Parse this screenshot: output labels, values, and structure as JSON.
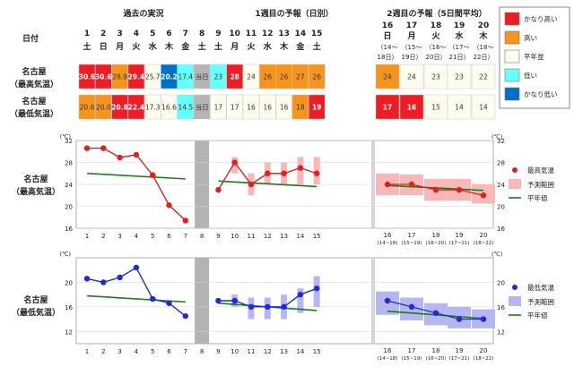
{
  "header": {
    "past_title": "過去の実況",
    "week1_title": "1週目の予報（日別）",
    "week2_title": "2週目の予報（5日間平均）",
    "date_label": "日付",
    "today_label": "当日"
  },
  "row_labels": {
    "max": [
      "名古屋",
      "（最高気温）"
    ],
    "min": [
      "名古屋",
      "（最低気温）"
    ]
  },
  "days": [
    {
      "d": "1",
      "w": "土"
    },
    {
      "d": "2",
      "w": "日"
    },
    {
      "d": "3",
      "w": "月"
    },
    {
      "d": "4",
      "w": "火"
    },
    {
      "d": "5",
      "w": "水"
    },
    {
      "d": "6",
      "w": "木"
    },
    {
      "d": "7",
      "w": "金"
    },
    {
      "d": "8",
      "w": "土"
    },
    {
      "d": "9",
      "w": "土"
    },
    {
      "d": "10",
      "w": "月"
    },
    {
      "d": "11",
      "w": "火"
    },
    {
      "d": "12",
      "w": "水"
    },
    {
      "d": "13",
      "w": "木"
    },
    {
      "d": "14",
      "w": "金"
    },
    {
      "d": "15",
      "w": "土"
    }
  ],
  "week2_days": [
    {
      "d": "16",
      "w": "日",
      "range1": "（14～",
      "range2": "18日）"
    },
    {
      "d": "17",
      "w": "月",
      "range1": "（15～",
      "range2": "19日）"
    },
    {
      "d": "18",
      "w": "火",
      "range1": "（16～",
      "range2": "20日）"
    },
    {
      "d": "19",
      "w": "水",
      "range1": "（17～",
      "range2": "21日）"
    },
    {
      "d": "20",
      "w": "木",
      "range1": "（18～",
      "range2": "22日）"
    }
  ],
  "table_max": [
    "30.6",
    "30.6",
    "28.9",
    "29.4",
    "25.7",
    "20.2",
    "17.4",
    "当日",
    "23",
    "28",
    "24",
    "26",
    "26",
    "27",
    "26"
  ],
  "table_max_levels": [
    "vhigh",
    "vhigh",
    "high",
    "vhigh",
    "normal",
    "vlow",
    "low",
    "today",
    "low",
    "vhigh",
    "normal",
    "high",
    "high",
    "high",
    "high"
  ],
  "table_min": [
    "20.6",
    "20.0",
    "20.8",
    "22.4",
    "17.3",
    "16.6",
    "14.5",
    "当日",
    "17",
    "17",
    "16",
    "16",
    "16",
    "18",
    "19"
  ],
  "table_min_levels": [
    "high",
    "high",
    "vhigh",
    "vhigh",
    "normal",
    "normal",
    "low",
    "today",
    "normal",
    "normal",
    "normal",
    "normal",
    "normal",
    "high",
    "vhigh"
  ],
  "week2_max": [
    "24",
    "24",
    "23",
    "23",
    "22"
  ],
  "week2_max_levels": [
    "high",
    "normal",
    "normal",
    "normal",
    "normal"
  ],
  "week2_min": [
    "17",
    "16",
    "15",
    "14",
    "14"
  ],
  "week2_min_levels": [
    "vhigh",
    "vhigh",
    "normal",
    "normal",
    "normal"
  ],
  "legend_levels": [
    {
      "key": "vhigh",
      "label": "かなり高い"
    },
    {
      "key": "high",
      "label": "高い"
    },
    {
      "key": "normal",
      "label": "平年並"
    },
    {
      "key": "low",
      "label": "低い"
    },
    {
      "key": "vlow",
      "label": "かなり低い"
    }
  ],
  "colors": {
    "vhigh": "#ee1c25",
    "high": "#f7941d",
    "normal": "#fdfdf0",
    "low": "#66ffff",
    "vlow": "#0070c8",
    "today": "#b5b5b5",
    "max_line": "#e0201e",
    "max_range": "#f8b8b8",
    "min_line": "#1f2bd6",
    "min_range": "#b6b6f0",
    "normal_line": "#1d7a1d",
    "frame": "#9a9a9a"
  },
  "chart_legend_max": {
    "point": "最高気温",
    "range": "予測範囲",
    "normal": "平年値"
  },
  "chart_legend_min": {
    "point": "最低気温",
    "range": "予測範囲",
    "normal": "平年値"
  },
  "unit_label": "(℃)",
  "chart_data": [
    {
      "type": "line",
      "title": "名古屋（最高気温）",
      "ylabel": "(℃)",
      "ylim": [
        16,
        32
      ],
      "yticks": [
        16,
        20,
        24,
        28,
        32
      ],
      "x": [
        1,
        2,
        3,
        4,
        5,
        6,
        7,
        8,
        9,
        10,
        11,
        12,
        13,
        14,
        15
      ],
      "series": [
        {
          "name": "最高気温",
          "x": [
            1,
            2,
            3,
            4,
            5,
            6,
            7
          ],
          "values": [
            30.6,
            30.6,
            28.9,
            29.4,
            25.7,
            20.2,
            17.4
          ]
        },
        {
          "name": "最高気温",
          "x": [
            9,
            10,
            11,
            12,
            13,
            14,
            15
          ],
          "values": [
            23,
            28,
            24,
            26,
            26,
            27,
            26
          ]
        },
        {
          "name": "予測範囲",
          "x": [
            10,
            11,
            12,
            13,
            14,
            15
          ],
          "low": [
            26,
            22,
            24,
            24,
            24,
            24
          ],
          "high": [
            29,
            26,
            28,
            28,
            29,
            29
          ]
        },
        {
          "name": "平年値",
          "x": [
            1,
            7
          ],
          "values": [
            26,
            25
          ]
        },
        {
          "name": "平年値",
          "x": [
            9,
            15
          ],
          "values": [
            24.6,
            23.6
          ]
        }
      ],
      "week2": {
        "categories": [
          "16",
          "17",
          "18",
          "19",
          "20"
        ],
        "sublabels": [
          "(14~18)",
          "(15~19)",
          "(16~20)",
          "(17~21)",
          "(18~22)"
        ],
        "values": [
          24,
          24,
          23,
          23,
          22
        ],
        "low": [
          22,
          22,
          21,
          21,
          20.5
        ],
        "high": [
          26,
          25.8,
          25,
          25,
          24
        ],
        "normal": [
          23.8,
          23.6,
          23.4,
          23.2,
          22.9
        ]
      }
    },
    {
      "type": "line",
      "title": "名古屋（最低気温）",
      "ylabel": "(℃)",
      "ylim": [
        10,
        24
      ],
      "yticks": [
        12,
        16,
        20
      ],
      "x": [
        1,
        2,
        3,
        4,
        5,
        6,
        7,
        8,
        9,
        10,
        11,
        12,
        13,
        14,
        15
      ],
      "series": [
        {
          "name": "最低気温",
          "x": [
            1,
            2,
            3,
            4,
            5,
            6,
            7
          ],
          "values": [
            20.6,
            20.0,
            20.8,
            22.4,
            17.3,
            16.6,
            14.5
          ]
        },
        {
          "name": "最低気温",
          "x": [
            9,
            10,
            11,
            12,
            13,
            14,
            15
          ],
          "values": [
            17,
            17,
            16,
            16,
            16,
            18,
            19
          ]
        },
        {
          "name": "予測範囲",
          "x": [
            10,
            11,
            12,
            13,
            14,
            15
          ],
          "low": [
            16,
            14,
            14,
            14,
            15,
            16
          ],
          "high": [
            18,
            17.5,
            17.5,
            18,
            19,
            21
          ]
        },
        {
          "name": "平年値",
          "x": [
            1,
            7
          ],
          "values": [
            17.8,
            16.8
          ]
        },
        {
          "name": "平年値",
          "x": [
            9,
            15
          ],
          "values": [
            16.6,
            15.4
          ]
        }
      ],
      "week2": {
        "categories": [
          "16",
          "17",
          "18",
          "19",
          "20"
        ],
        "sublabels": [
          "(14~18)",
          "(15~19)",
          "(16~20)",
          "(17~21)",
          "(18~22)"
        ],
        "values": [
          17,
          16,
          15,
          14,
          14
        ],
        "low": [
          14.7,
          13.8,
          13,
          12.5,
          12.5
        ],
        "high": [
          18.5,
          17.5,
          16.6,
          16,
          15.6
        ],
        "normal": [
          15.3,
          15.0,
          14.7,
          14.4,
          14.1
        ]
      }
    }
  ]
}
